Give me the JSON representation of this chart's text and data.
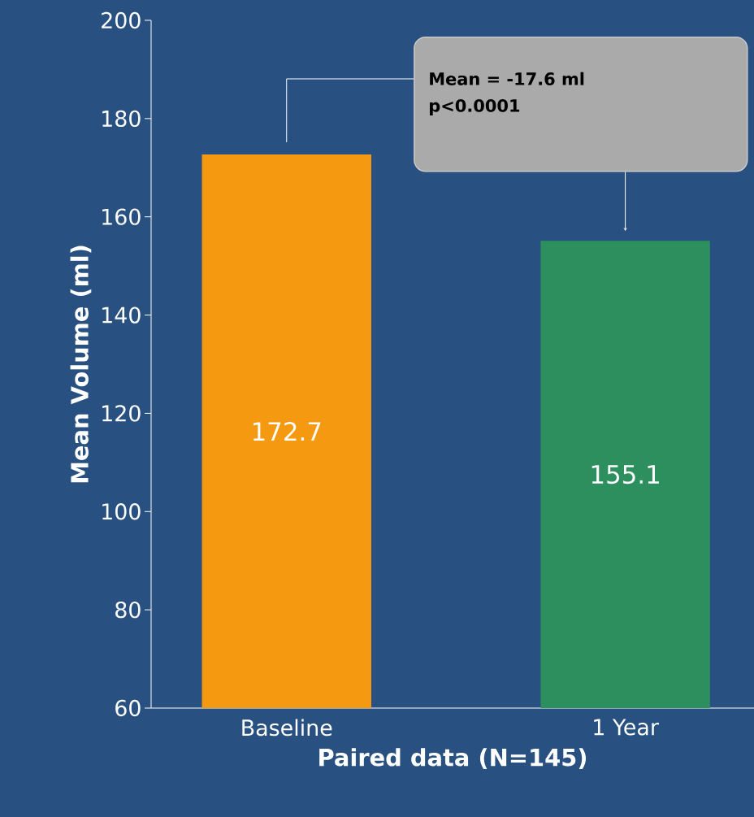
{
  "chart_data": {
    "type": "bar",
    "categories": [
      "Baseline",
      "1 Year"
    ],
    "values": [
      172.7,
      155.1
    ],
    "colors": [
      "#f59a10",
      "#2e8f5e"
    ],
    "xlabel": "Paired data (N=145)",
    "ylabel": "Mean Volume (ml)",
    "ylim": [
      60,
      200
    ],
    "yticks": [
      60,
      80,
      100,
      120,
      140,
      160,
      180,
      200
    ],
    "data_labels": true,
    "annotations": [
      "Mean = -17.6 ml",
      "p<0.0001"
    ]
  }
}
